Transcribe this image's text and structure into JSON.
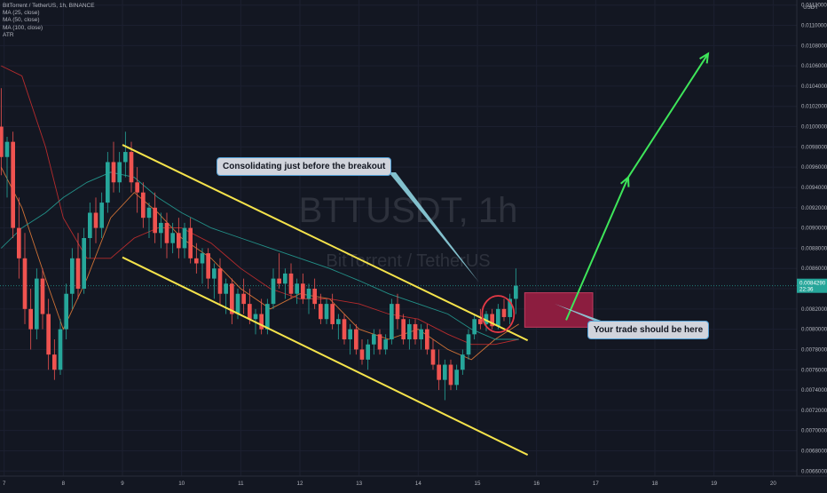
{
  "legend": {
    "symbol": "BitTorrent / TetherUS, 1h, BINANCE",
    "ma1": "MA (25, close)",
    "ma2": "MA (50, close)",
    "ma3": "MA (100, close)",
    "atr": "ATR"
  },
  "watermark": {
    "ticker": "BTTUSDT, 1h",
    "name": "BitTorrent / TetherUS"
  },
  "price_axis": {
    "currency": "USDT",
    "ticks": [
      "0.0112000",
      "0.0110000",
      "0.0108000",
      "0.0106000",
      "0.0104000",
      "0.0102000",
      "0.0100000",
      "0.0098000",
      "0.0096000",
      "0.0094000",
      "0.0092000",
      "0.0090000",
      "0.0088000",
      "0.0086000",
      "0.0084000",
      "0.0082000",
      "0.0080000",
      "0.0078000",
      "0.0076000",
      "0.0074000",
      "0.0072000",
      "0.0070000",
      "0.0068000",
      "0.0066000"
    ],
    "last_price": "0.0084290",
    "countdown": "22:36"
  },
  "time_axis": {
    "ticks": [
      "7",
      "8",
      "9",
      "10",
      "11",
      "12",
      "13",
      "14",
      "15",
      "16",
      "17",
      "18",
      "19",
      "20"
    ]
  },
  "annotations": {
    "consolidation": "Consolidating just before the breakout",
    "trade": "Your trade should be here"
  },
  "colors": {
    "background": "#131722",
    "up": "#26a69a",
    "down": "#ef5350",
    "channel": "#f5e34b",
    "ma25": "#f0813a",
    "ma50": "#d32f2f",
    "ma100": "#26a69a",
    "arrow": "#3ee65a",
    "trade_zone": "#8c1d3f",
    "circle": "#e53945"
  },
  "chart_data": {
    "type": "candlestick",
    "title": "BitTorrent / TetherUS, 1h, BINANCE",
    "x_unit": "day of month",
    "y_unit": "USDT",
    "ylim": [
      0.00655,
      0.01125
    ],
    "xlim": [
      6.93,
      20.4
    ],
    "grid": true,
    "candles": [
      {
        "x": 6.95,
        "o": 0.01,
        "h": 0.01038,
        "l": 0.00952,
        "c": 0.0097
      },
      {
        "x": 7.05,
        "o": 0.0097,
        "h": 0.0099,
        "l": 0.0093,
        "c": 0.00985
      },
      {
        "x": 7.15,
        "o": 0.00985,
        "h": 0.00995,
        "l": 0.0089,
        "c": 0.009
      },
      {
        "x": 7.25,
        "o": 0.009,
        "h": 0.0093,
        "l": 0.0085,
        "c": 0.0087
      },
      {
        "x": 7.35,
        "o": 0.0087,
        "h": 0.00895,
        "l": 0.00805,
        "c": 0.0082
      },
      {
        "x": 7.45,
        "o": 0.0082,
        "h": 0.0084,
        "l": 0.0078,
        "c": 0.008
      },
      {
        "x": 7.55,
        "o": 0.008,
        "h": 0.0086,
        "l": 0.0079,
        "c": 0.0085
      },
      {
        "x": 7.65,
        "o": 0.0085,
        "h": 0.0086,
        "l": 0.008,
        "c": 0.00815
      },
      {
        "x": 7.75,
        "o": 0.00815,
        "h": 0.0083,
        "l": 0.0076,
        "c": 0.00775
      },
      {
        "x": 7.85,
        "o": 0.00775,
        "h": 0.0079,
        "l": 0.0075,
        "c": 0.0076
      },
      {
        "x": 7.95,
        "o": 0.0076,
        "h": 0.0081,
        "l": 0.00755,
        "c": 0.008
      },
      {
        "x": 8.05,
        "o": 0.008,
        "h": 0.00845,
        "l": 0.0079,
        "c": 0.00835
      },
      {
        "x": 8.15,
        "o": 0.00835,
        "h": 0.0088,
        "l": 0.0082,
        "c": 0.0087
      },
      {
        "x": 8.25,
        "o": 0.0087,
        "h": 0.00895,
        "l": 0.0083,
        "c": 0.0084
      },
      {
        "x": 8.35,
        "o": 0.0084,
        "h": 0.009,
        "l": 0.00835,
        "c": 0.0089
      },
      {
        "x": 8.45,
        "o": 0.0089,
        "h": 0.00925,
        "l": 0.0087,
        "c": 0.00915
      },
      {
        "x": 8.55,
        "o": 0.00915,
        "h": 0.0093,
        "l": 0.00885,
        "c": 0.009
      },
      {
        "x": 8.65,
        "o": 0.009,
        "h": 0.00935,
        "l": 0.0089,
        "c": 0.00925
      },
      {
        "x": 8.75,
        "o": 0.00925,
        "h": 0.00975,
        "l": 0.00915,
        "c": 0.00965
      },
      {
        "x": 8.85,
        "o": 0.00965,
        "h": 0.00985,
        "l": 0.00935,
        "c": 0.00945
      },
      {
        "x": 8.95,
        "o": 0.00945,
        "h": 0.00975,
        "l": 0.00935,
        "c": 0.00965
      },
      {
        "x": 9.05,
        "o": 0.00965,
        "h": 0.00995,
        "l": 0.0095,
        "c": 0.00975
      },
      {
        "x": 9.15,
        "o": 0.00975,
        "h": 0.00985,
        "l": 0.00935,
        "c": 0.00945
      },
      {
        "x": 9.25,
        "o": 0.00945,
        "h": 0.0096,
        "l": 0.00915,
        "c": 0.00935
      },
      {
        "x": 9.35,
        "o": 0.00935,
        "h": 0.00945,
        "l": 0.009,
        "c": 0.0091
      },
      {
        "x": 9.45,
        "o": 0.0091,
        "h": 0.00925,
        "l": 0.0089,
        "c": 0.0092
      },
      {
        "x": 9.55,
        "o": 0.0092,
        "h": 0.00935,
        "l": 0.00885,
        "c": 0.00895
      },
      {
        "x": 9.65,
        "o": 0.00895,
        "h": 0.00915,
        "l": 0.0088,
        "c": 0.00905
      },
      {
        "x": 9.75,
        "o": 0.00905,
        "h": 0.00915,
        "l": 0.0087,
        "c": 0.00885
      },
      {
        "x": 9.85,
        "o": 0.00885,
        "h": 0.00905,
        "l": 0.00875,
        "c": 0.00895
      },
      {
        "x": 9.95,
        "o": 0.00895,
        "h": 0.0091,
        "l": 0.0087,
        "c": 0.0088
      },
      {
        "x": 10.05,
        "o": 0.0088,
        "h": 0.00905,
        "l": 0.0087,
        "c": 0.009
      },
      {
        "x": 10.15,
        "o": 0.009,
        "h": 0.0091,
        "l": 0.00865,
        "c": 0.0087
      },
      {
        "x": 10.25,
        "o": 0.0087,
        "h": 0.00885,
        "l": 0.00855,
        "c": 0.00865
      },
      {
        "x": 10.35,
        "o": 0.00865,
        "h": 0.0088,
        "l": 0.00845,
        "c": 0.00875
      },
      {
        "x": 10.45,
        "o": 0.00875,
        "h": 0.0088,
        "l": 0.0084,
        "c": 0.0085
      },
      {
        "x": 10.55,
        "o": 0.0085,
        "h": 0.00865,
        "l": 0.0083,
        "c": 0.0086
      },
      {
        "x": 10.65,
        "o": 0.0086,
        "h": 0.0087,
        "l": 0.00825,
        "c": 0.00835
      },
      {
        "x": 10.75,
        "o": 0.00835,
        "h": 0.0085,
        "l": 0.00815,
        "c": 0.00845
      },
      {
        "x": 10.85,
        "o": 0.00845,
        "h": 0.0085,
        "l": 0.00805,
        "c": 0.00815
      },
      {
        "x": 10.95,
        "o": 0.00815,
        "h": 0.0084,
        "l": 0.0081,
        "c": 0.00835
      },
      {
        "x": 11.05,
        "o": 0.00835,
        "h": 0.0085,
        "l": 0.00815,
        "c": 0.00825
      },
      {
        "x": 11.15,
        "o": 0.00825,
        "h": 0.0084,
        "l": 0.00805,
        "c": 0.0081
      },
      {
        "x": 11.25,
        "o": 0.0081,
        "h": 0.0082,
        "l": 0.00795,
        "c": 0.00815
      },
      {
        "x": 11.35,
        "o": 0.00815,
        "h": 0.0083,
        "l": 0.00795,
        "c": 0.008
      },
      {
        "x": 11.45,
        "o": 0.008,
        "h": 0.0083,
        "l": 0.00795,
        "c": 0.00825
      },
      {
        "x": 11.55,
        "o": 0.00825,
        "h": 0.0086,
        "l": 0.0082,
        "c": 0.0085
      },
      {
        "x": 11.65,
        "o": 0.0085,
        "h": 0.00875,
        "l": 0.0084,
        "c": 0.00845
      },
      {
        "x": 11.75,
        "o": 0.00845,
        "h": 0.0086,
        "l": 0.0083,
        "c": 0.00855
      },
      {
        "x": 11.85,
        "o": 0.00855,
        "h": 0.00865,
        "l": 0.0083,
        "c": 0.00835
      },
      {
        "x": 11.95,
        "o": 0.00835,
        "h": 0.0085,
        "l": 0.00825,
        "c": 0.00845
      },
      {
        "x": 12.05,
        "o": 0.00845,
        "h": 0.00855,
        "l": 0.00825,
        "c": 0.0083
      },
      {
        "x": 12.15,
        "o": 0.0083,
        "h": 0.00845,
        "l": 0.00815,
        "c": 0.0084
      },
      {
        "x": 12.25,
        "o": 0.0084,
        "h": 0.0085,
        "l": 0.0082,
        "c": 0.00825
      },
      {
        "x": 12.35,
        "o": 0.00825,
        "h": 0.00835,
        "l": 0.00805,
        "c": 0.0081
      },
      {
        "x": 12.45,
        "o": 0.0081,
        "h": 0.0083,
        "l": 0.00805,
        "c": 0.00825
      },
      {
        "x": 12.55,
        "o": 0.00825,
        "h": 0.00835,
        "l": 0.008,
        "c": 0.00805
      },
      {
        "x": 12.65,
        "o": 0.00805,
        "h": 0.00815,
        "l": 0.0079,
        "c": 0.0081
      },
      {
        "x": 12.75,
        "o": 0.0081,
        "h": 0.00815,
        "l": 0.00785,
        "c": 0.0079
      },
      {
        "x": 12.85,
        "o": 0.0079,
        "h": 0.00805,
        "l": 0.00775,
        "c": 0.008
      },
      {
        "x": 12.95,
        "o": 0.008,
        "h": 0.00805,
        "l": 0.00775,
        "c": 0.0078
      },
      {
        "x": 13.05,
        "o": 0.0078,
        "h": 0.0079,
        "l": 0.00765,
        "c": 0.0077
      },
      {
        "x": 13.15,
        "o": 0.0077,
        "h": 0.0079,
        "l": 0.0076,
        "c": 0.00785
      },
      {
        "x": 13.25,
        "o": 0.00785,
        "h": 0.008,
        "l": 0.00775,
        "c": 0.00795
      },
      {
        "x": 13.35,
        "o": 0.00795,
        "h": 0.008,
        "l": 0.00775,
        "c": 0.0078
      },
      {
        "x": 13.45,
        "o": 0.0078,
        "h": 0.00795,
        "l": 0.00775,
        "c": 0.0079
      },
      {
        "x": 13.55,
        "o": 0.0079,
        "h": 0.0083,
        "l": 0.00785,
        "c": 0.00825
      },
      {
        "x": 13.65,
        "o": 0.00825,
        "h": 0.00835,
        "l": 0.008,
        "c": 0.0081
      },
      {
        "x": 13.75,
        "o": 0.0081,
        "h": 0.00815,
        "l": 0.00785,
        "c": 0.0079
      },
      {
        "x": 13.85,
        "o": 0.0079,
        "h": 0.0081,
        "l": 0.0078,
        "c": 0.00805
      },
      {
        "x": 13.95,
        "o": 0.00805,
        "h": 0.0081,
        "l": 0.00785,
        "c": 0.0079
      },
      {
        "x": 14.05,
        "o": 0.0079,
        "h": 0.00805,
        "l": 0.0078,
        "c": 0.008
      },
      {
        "x": 14.15,
        "o": 0.008,
        "h": 0.00805,
        "l": 0.00775,
        "c": 0.0078
      },
      {
        "x": 14.25,
        "o": 0.0078,
        "h": 0.0079,
        "l": 0.0076,
        "c": 0.00765
      },
      {
        "x": 14.35,
        "o": 0.00765,
        "h": 0.0078,
        "l": 0.0074,
        "c": 0.0075
      },
      {
        "x": 14.45,
        "o": 0.0075,
        "h": 0.0077,
        "l": 0.0073,
        "c": 0.00765
      },
      {
        "x": 14.55,
        "o": 0.00765,
        "h": 0.0077,
        "l": 0.0074,
        "c": 0.00745
      },
      {
        "x": 14.65,
        "o": 0.00745,
        "h": 0.00765,
        "l": 0.0074,
        "c": 0.0076
      },
      {
        "x": 14.75,
        "o": 0.0076,
        "h": 0.0078,
        "l": 0.00755,
        "c": 0.00775
      },
      {
        "x": 14.85,
        "o": 0.00775,
        "h": 0.008,
        "l": 0.0077,
        "c": 0.00795
      },
      {
        "x": 14.95,
        "o": 0.00795,
        "h": 0.00815,
        "l": 0.0079,
        "c": 0.0081
      },
      {
        "x": 15.05,
        "o": 0.0081,
        "h": 0.0082,
        "l": 0.008,
        "c": 0.00805
      },
      {
        "x": 15.15,
        "o": 0.00805,
        "h": 0.00818,
        "l": 0.00798,
        "c": 0.00815
      },
      {
        "x": 15.25,
        "o": 0.00815,
        "h": 0.0082,
        "l": 0.008,
        "c": 0.00803
      },
      {
        "x": 15.35,
        "o": 0.00803,
        "h": 0.00825,
        "l": 0.008,
        "c": 0.0082
      },
      {
        "x": 15.45,
        "o": 0.0082,
        "h": 0.0083,
        "l": 0.00808,
        "c": 0.00812
      },
      {
        "x": 15.55,
        "o": 0.00812,
        "h": 0.00835,
        "l": 0.00805,
        "c": 0.0083
      },
      {
        "x": 15.65,
        "o": 0.0083,
        "h": 0.0086,
        "l": 0.00815,
        "c": 0.00843
      }
    ],
    "moving_averages": [
      {
        "name": "MA (25, close)",
        "points": [
          [
            6.95,
            0.0096
          ],
          [
            7.3,
            0.0092
          ],
          [
            7.7,
            0.0085
          ],
          [
            8.0,
            0.008
          ],
          [
            8.4,
            0.0085
          ],
          [
            8.8,
            0.0091
          ],
          [
            9.2,
            0.00935
          ],
          [
            9.6,
            0.00915
          ],
          [
            10.0,
            0.0089
          ],
          [
            10.5,
            0.0087
          ],
          [
            11.0,
            0.0084
          ],
          [
            11.5,
            0.0082
          ],
          [
            12.0,
            0.00835
          ],
          [
            12.5,
            0.0083
          ],
          [
            13.0,
            0.008
          ],
          [
            13.5,
            0.0079
          ],
          [
            14.0,
            0.008
          ],
          [
            14.5,
            0.0078
          ],
          [
            14.9,
            0.0077
          ],
          [
            15.3,
            0.0079
          ],
          [
            15.7,
            0.00805
          ]
        ]
      },
      {
        "name": "MA (50, close)",
        "points": [
          [
            6.95,
            0.0106
          ],
          [
            7.3,
            0.0105
          ],
          [
            7.7,
            0.0098
          ],
          [
            8.0,
            0.0091
          ],
          [
            8.4,
            0.0087
          ],
          [
            8.8,
            0.0087
          ],
          [
            9.2,
            0.0089
          ],
          [
            9.6,
            0.009
          ],
          [
            10.0,
            0.009
          ],
          [
            10.5,
            0.00885
          ],
          [
            11.0,
            0.0086
          ],
          [
            11.5,
            0.0084
          ],
          [
            12.0,
            0.0083
          ],
          [
            12.5,
            0.0083
          ],
          [
            13.0,
            0.00825
          ],
          [
            13.5,
            0.00815
          ],
          [
            14.0,
            0.0081
          ],
          [
            14.5,
            0.00795
          ],
          [
            14.9,
            0.00785
          ],
          [
            15.3,
            0.00785
          ],
          [
            15.7,
            0.0079
          ]
        ]
      },
      {
        "name": "MA (100, close)",
        "points": [
          [
            6.95,
            0.0088
          ],
          [
            7.3,
            0.009
          ],
          [
            7.7,
            0.00915
          ],
          [
            8.0,
            0.0093
          ],
          [
            8.4,
            0.00945
          ],
          [
            8.8,
            0.00955
          ],
          [
            9.2,
            0.0095
          ],
          [
            9.6,
            0.0093
          ],
          [
            10.0,
            0.00915
          ],
          [
            10.5,
            0.009
          ],
          [
            11.0,
            0.0089
          ],
          [
            11.5,
            0.0088
          ],
          [
            12.0,
            0.0087
          ],
          [
            12.5,
            0.0086
          ],
          [
            13.0,
            0.00848
          ],
          [
            13.5,
            0.00835
          ],
          [
            14.0,
            0.00825
          ],
          [
            14.5,
            0.00815
          ],
          [
            14.9,
            0.008
          ],
          [
            15.3,
            0.0079
          ],
          [
            15.7,
            0.0079
          ]
        ]
      }
    ],
    "channel_lines": [
      {
        "from": [
          9.0,
          0.00982
        ],
        "to": [
          15.85,
          0.00789
        ]
      },
      {
        "from": [
          9.0,
          0.00871
        ],
        "to": [
          15.85,
          0.00676
        ]
      }
    ],
    "arrows": [
      {
        "from": [
          16.5,
          0.00809
        ],
        "to": [
          17.55,
          0.0095
        ]
      },
      {
        "from": [
          17.55,
          0.0095
        ],
        "to": [
          18.9,
          0.01072
        ]
      }
    ],
    "trade_zone": {
      "x0": 15.8,
      "x1": 16.95,
      "y0": 0.00802,
      "y1": 0.00836
    },
    "circle": {
      "x": 15.35,
      "y": 0.00815,
      "rx": 0.27,
      "ry": 0.00018
    }
  }
}
